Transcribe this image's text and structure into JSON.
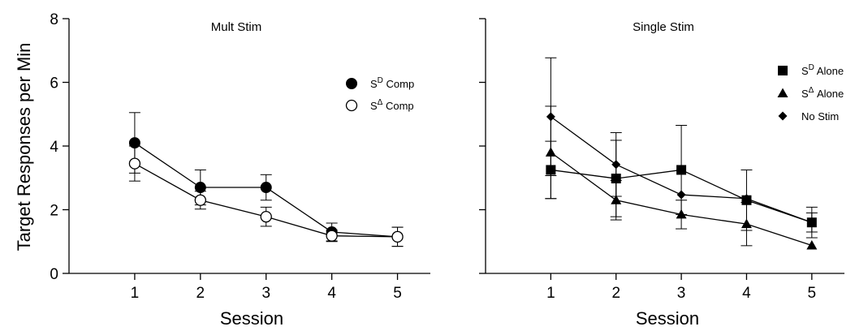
{
  "chart_data": [
    {
      "type": "line",
      "title": "Mult Stim",
      "xlabel": "Session",
      "ylabel": "Target Responses per Min",
      "x": [
        1,
        2,
        3,
        4,
        5
      ],
      "xticks": [
        "1",
        "2",
        "3",
        "4",
        "5"
      ],
      "xlim": [
        0,
        5.5
      ],
      "ylim": [
        0,
        8
      ],
      "yticks": [
        "0",
        "2",
        "4",
        "6",
        "8"
      ],
      "ytick_values": [
        0,
        2,
        4,
        6,
        8
      ],
      "legend_position": "top-right",
      "series": [
        {
          "name_base": "S",
          "name_sup": "D",
          "name_rest": " Comp",
          "marker": "filled-circle",
          "values": [
            4.1,
            2.7,
            2.7,
            1.3,
            1.15
          ],
          "error": [
            0.95,
            0.55,
            0.4,
            0.28,
            0.3
          ]
        },
        {
          "name_base": "S",
          "name_sup": "Δ",
          "name_rest": " Comp",
          "marker": "open-circle",
          "values": [
            3.45,
            2.3,
            1.78,
            1.18,
            1.15
          ],
          "error": [
            0.55,
            0.28,
            0.3,
            0.18,
            0.3
          ]
        }
      ]
    },
    {
      "type": "line",
      "title": "Single Stim",
      "xlabel": "Session",
      "ylabel": "",
      "x": [
        1,
        2,
        3,
        4,
        5
      ],
      "xticks": [
        "1",
        "2",
        "3",
        "4",
        "5"
      ],
      "xlim": [
        0,
        5.5
      ],
      "ylim": [
        0,
        8
      ],
      "yticks": [],
      "ytick_values": [
        0,
        2,
        4,
        6,
        8
      ],
      "legend_position": "top-right",
      "series": [
        {
          "name_base": "S",
          "name_sup": "D",
          "name_rest": " Alone",
          "marker": "filled-square",
          "values": [
            3.25,
            2.98,
            3.25,
            2.3,
            1.6
          ],
          "error": [
            0.9,
            1.2,
            1.4,
            0.95,
            0.48
          ]
        },
        {
          "name_base": "S",
          "name_sup": "Δ",
          "name_rest": " Alone",
          "marker": "filled-triangle",
          "values": [
            3.8,
            2.3,
            1.85,
            1.55,
            0.88
          ],
          "error": [
            1.45,
            0.62,
            0.45,
            0.68,
            0.0
          ]
        },
        {
          "name_base": "No Stim",
          "name_sup": "",
          "name_rest": "",
          "marker": "filled-diamond",
          "values": [
            4.92,
            3.42,
            2.47,
            2.35,
            1.6
          ],
          "error": [
            1.85,
            1.0,
            0.0,
            0.0,
            0.3
          ]
        }
      ]
    }
  ]
}
